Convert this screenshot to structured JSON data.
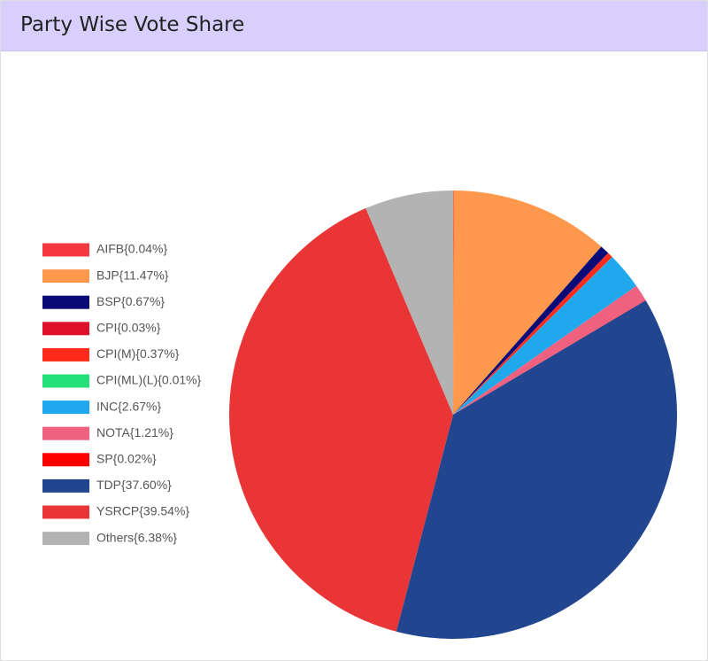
{
  "header": {
    "title": "Party Wise Vote Share"
  },
  "chart_data": {
    "type": "pie",
    "categories": [
      "AIFB{0.04%}",
      "BJP{11.47%}",
      "BSP{0.67%}",
      "CPI{0.03%}",
      "CPI(M){0.37%}",
      "CPI(ML)(L){0.01%}",
      "INC{2.67%}",
      "NOTA{1.21%}",
      "SP{0.02%}",
      "TDP{37.60%}",
      "YSRCP{39.54%}",
      "Others{6.38%}"
    ],
    "values": [
      0.04,
      11.47,
      0.67,
      0.03,
      0.37,
      0.01,
      2.67,
      1.21,
      0.02,
      37.6,
      39.54,
      6.38
    ],
    "colors": [
      "#f5383f",
      "#fd984d",
      "#0b0b78",
      "#df1029",
      "#ff2a1a",
      "#22e07a",
      "#1fa9ec",
      "#f0607f",
      "#ff0000",
      "#21468f",
      "#e93535",
      "#b3b3b3"
    ],
    "legend": "left"
  }
}
